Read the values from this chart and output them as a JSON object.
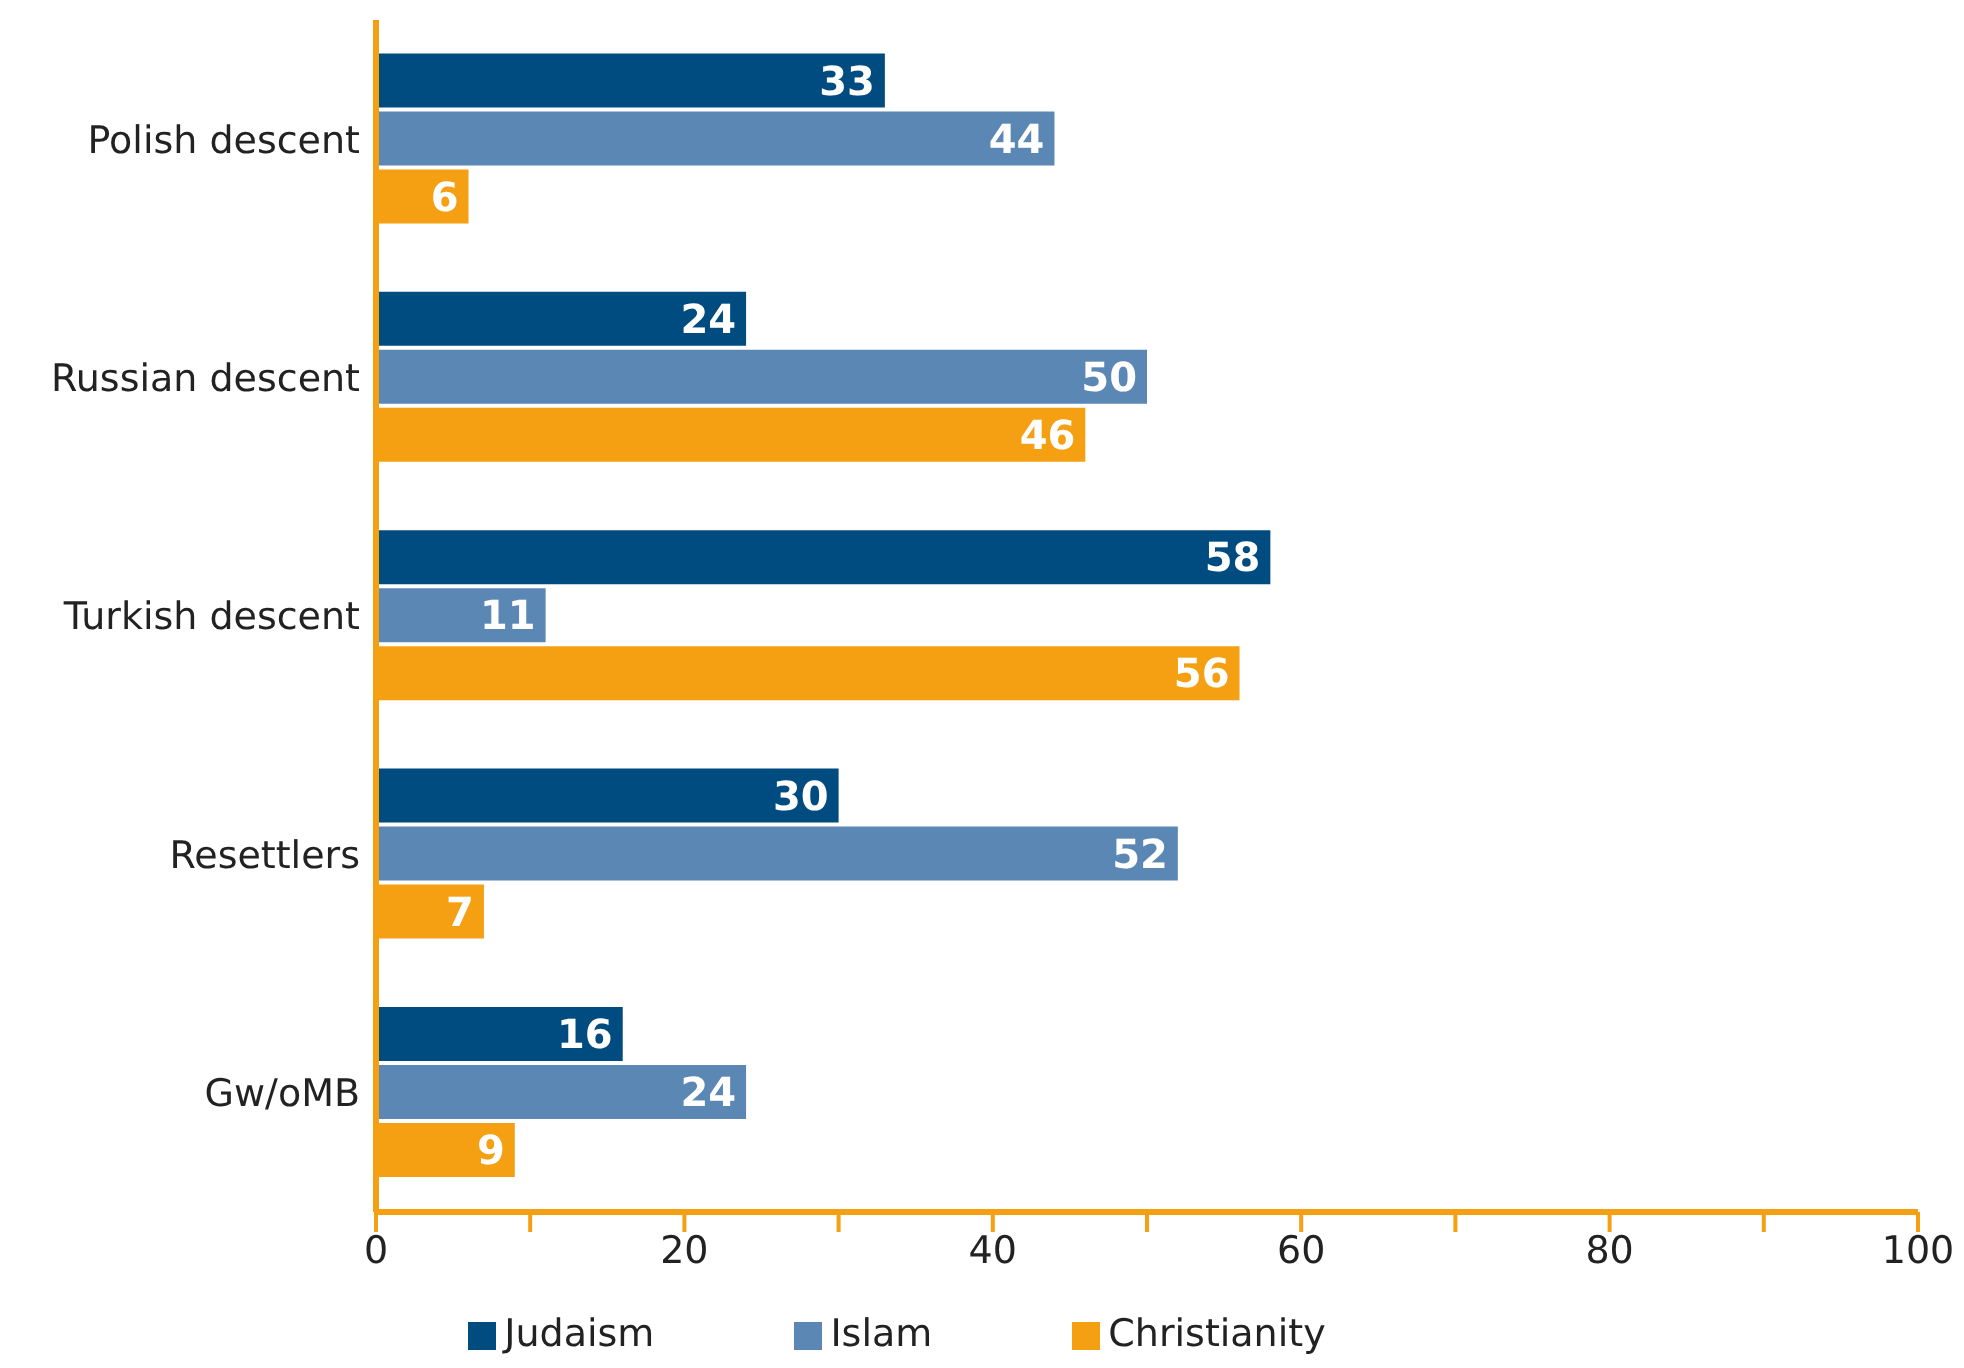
{
  "chart_data": {
    "type": "bar",
    "orientation": "horizontal",
    "categories": [
      "Polish descent",
      "Russian descent",
      "Turkish descent",
      "Resettlers",
      "Gw/oMB"
    ],
    "series": [
      {
        "name": "Judaism",
        "color": "#004b80",
        "values": [
          33,
          24,
          58,
          30,
          16
        ]
      },
      {
        "name": "Islam",
        "color": "#5b87b5",
        "values": [
          44,
          50,
          11,
          52,
          24
        ]
      },
      {
        "name": "Christianity",
        "color": "#f5a012",
        "values": [
          6,
          46,
          56,
          7,
          9
        ]
      }
    ],
    "xlim": [
      0,
      100
    ],
    "xticks": [
      0,
      {
        "value": 10,
        "label": null
      },
      20,
      {
        "value": 30,
        "label": null
      },
      40,
      {
        "value": 50,
        "label": null
      },
      60,
      {
        "value": 70,
        "label": null
      },
      80,
      {
        "value": 90,
        "label": null
      },
      100
    ],
    "data_labels": true,
    "grid": false,
    "legend": "bottom"
  }
}
